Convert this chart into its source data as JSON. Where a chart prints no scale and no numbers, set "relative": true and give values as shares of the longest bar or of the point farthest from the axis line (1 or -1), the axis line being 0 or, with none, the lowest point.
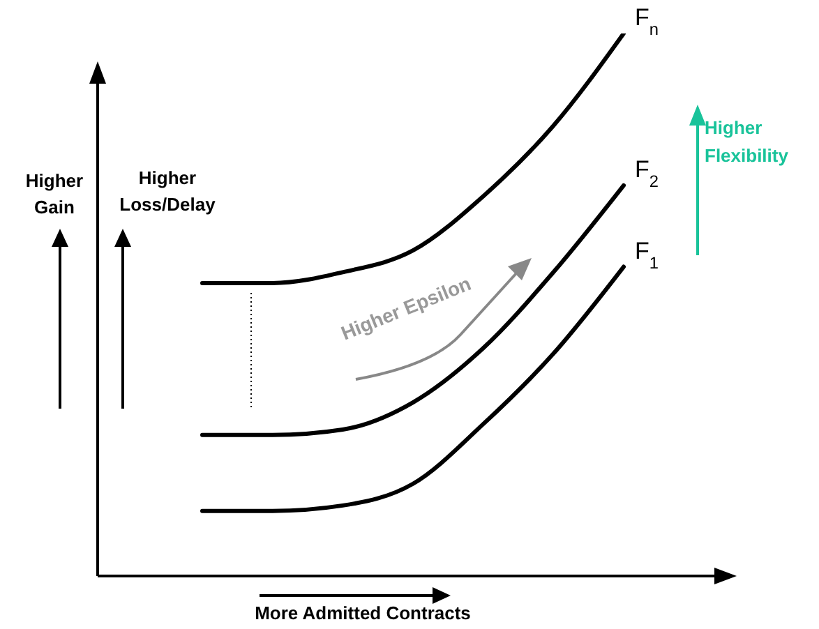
{
  "chart_data": {
    "type": "line",
    "relative": true,
    "xlabel": "More Admitted Contracts",
    "categories": [
      null,
      null,
      null,
      null,
      null,
      null,
      null
    ],
    "marker": "none",
    "line_style": "solid",
    "legend": false,
    "grid": false,
    "series": [
      {
        "name": "F$_{n}$",
        "color": "#000000",
        "values": [
          0.54,
          0.54,
          0.56,
          0.6,
          0.7,
          0.83,
          1
        ]
      },
      {
        "name": "F$_{2}$",
        "color": "#000000",
        "values": [
          0.26,
          0.26,
          0.27,
          0.32,
          0.42,
          0.56,
          0.72
        ]
      },
      {
        "name": "F$_{1}$",
        "color": "#000000",
        "values": [
          0.12,
          0.12,
          0.13,
          0.17,
          0.28,
          0.41,
          0.57
        ]
      }
    ],
    "annotations": [
      "Higher Gain",
      "Higher Loss/Delay",
      "Higher Epsilon",
      "Higher Flexibility"
    ]
  }
}
